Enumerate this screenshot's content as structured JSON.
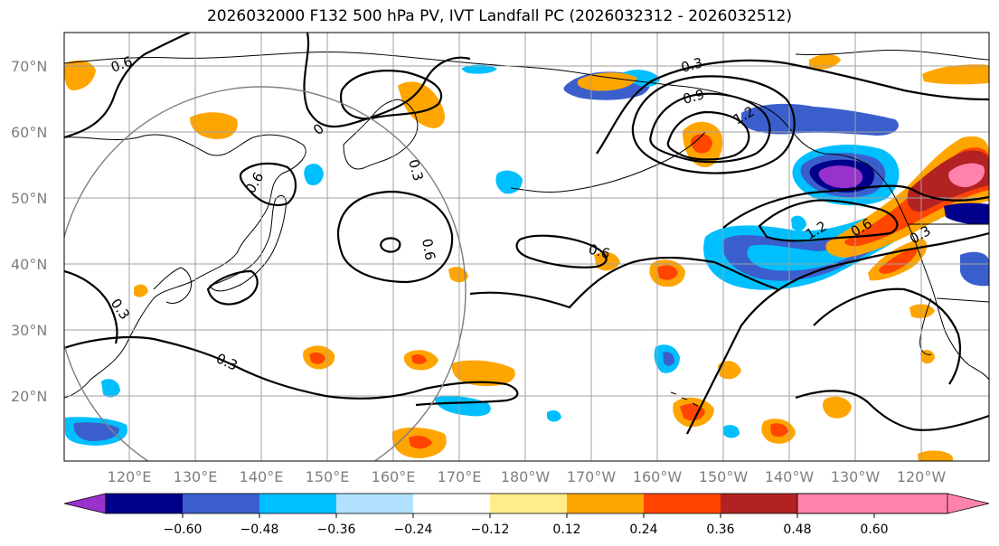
{
  "title": "2026032000 F132 500 hPa PV, IVT Landfall PC (2026032312 - 2026032512)",
  "lat_labels": [
    "70°N",
    "60°N",
    "50°N",
    "40°N",
    "30°N",
    "20°N"
  ],
  "lon_labels": [
    "120°E",
    "130°E",
    "140°E",
    "150°E",
    "160°E",
    "170°E",
    "180°W",
    "170°W",
    "160°W",
    "150°W",
    "140°W",
    "130°W",
    "120°W"
  ],
  "contour_labels": [
    "0.6",
    "0.3",
    "0.9",
    "1.2",
    "0",
    "0.3",
    "0.6",
    "0.6",
    "1.2",
    "0.6",
    "0.3",
    "0.3",
    "0.3",
    "0.6"
  ],
  "colorbar": {
    "ticks": [
      "−0.60",
      "−0.48",
      "−0.36",
      "−0.24",
      "−0.12",
      "0.12",
      "0.24",
      "0.36",
      "0.48",
      "0.60"
    ],
    "colors": [
      "#9932cc",
      "#00008b",
      "#3a5fcd",
      "#00bfff",
      "#b0e2ff",
      "#ffffff",
      "#ffec8b",
      "#ffa500",
      "#ff4500",
      "#b22222",
      "#ff82ab"
    ]
  },
  "colors": {
    "purple": "#9932cc",
    "navy": "#00008b",
    "royal": "#3a5fcd",
    "sky": "#00bfff",
    "lightsky": "#b0e2ff",
    "yellow": "#ffec8b",
    "orange": "#ffa500",
    "redorange": "#ff4500",
    "firebrick": "#b22222",
    "pink": "#ff82ab"
  }
}
